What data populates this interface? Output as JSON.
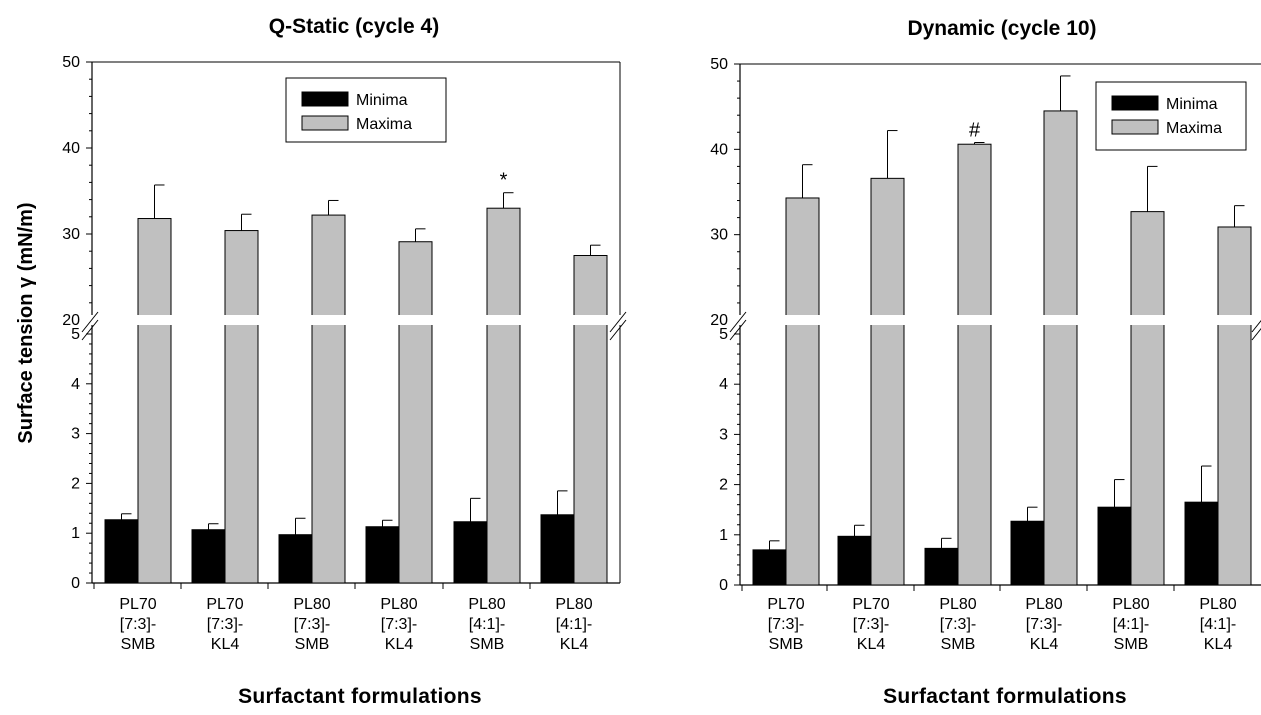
{
  "colors": {
    "minima": "#000000",
    "maxima": "#c0c0c0",
    "axis": "#000000",
    "background": "#ffffff"
  },
  "ylabel": "Surface tension γ (mN/m)",
  "chart_data": [
    {
      "type": "bar",
      "title": "Q-Static (cycle 4)",
      "xlabel": "Surfactant formulations",
      "ylabel": "Surface tension γ (mN/m)",
      "categories": [
        [
          "PL70",
          "[7:3]-",
          "SMB"
        ],
        [
          "PL70",
          "[7:3]-",
          "KL4"
        ],
        [
          "PL80",
          "[7:3]-",
          "SMB"
        ],
        [
          "PL80",
          "[7:3]-",
          "KL4"
        ],
        [
          "PL80",
          "[4:1]-",
          "SMB"
        ],
        [
          "PL80",
          "[4:1]-",
          "KL4"
        ]
      ],
      "series": [
        {
          "name": "Minima",
          "values": [
            1.27,
            1.07,
            0.97,
            1.13,
            1.23,
            1.37
          ],
          "errors": [
            0.12,
            0.12,
            0.33,
            0.13,
            0.47,
            0.48
          ]
        },
        {
          "name": "Maxima",
          "values": [
            31.8,
            30.4,
            32.2,
            29.1,
            33.0,
            27.5
          ],
          "errors": [
            3.9,
            1.9,
            1.7,
            1.5,
            1.8,
            1.2
          ]
        }
      ],
      "ylim_lower": [
        0,
        5
      ],
      "yticks_lower": [
        0,
        1,
        2,
        3,
        4,
        5
      ],
      "ylim_upper": [
        20,
        50
      ],
      "yticks_upper": [
        20,
        30,
        40,
        50
      ],
      "axis_break": true,
      "annotations": [
        {
          "category_index": 4,
          "series": "Maxima",
          "text": "*"
        }
      ],
      "legend": {
        "position": "top-center",
        "entries": [
          "Minima",
          "Maxima"
        ]
      },
      "grid": false
    },
    {
      "type": "bar",
      "title": "Dynamic (cycle 10)",
      "xlabel": "Surfactant formulations",
      "ylabel": "",
      "categories": [
        [
          "PL70",
          "[7:3]-",
          "SMB"
        ],
        [
          "PL70",
          "[7:3]-",
          "KL4"
        ],
        [
          "PL80",
          "[7:3]-",
          "SMB"
        ],
        [
          "PL80",
          "[7:3]-",
          "KL4"
        ],
        [
          "PL80",
          "[4:1]-",
          "SMB"
        ],
        [
          "PL80",
          "[4:1]-",
          "KL4"
        ]
      ],
      "series": [
        {
          "name": "Minima",
          "values": [
            0.7,
            0.97,
            0.73,
            1.27,
            1.55,
            1.65
          ],
          "errors": [
            0.18,
            0.22,
            0.2,
            0.28,
            0.55,
            0.72
          ]
        },
        {
          "name": "Maxima",
          "values": [
            34.3,
            36.6,
            40.6,
            44.5,
            32.7,
            30.9
          ],
          "errors": [
            3.9,
            5.6,
            0.2,
            4.1,
            5.3,
            2.5
          ]
        }
      ],
      "ylim_lower": [
        0,
        5
      ],
      "yticks_lower": [
        0,
        1,
        2,
        3,
        4,
        5
      ],
      "ylim_upper": [
        20,
        50
      ],
      "yticks_upper": [
        20,
        30,
        40,
        50
      ],
      "axis_break": true,
      "annotations": [
        {
          "category_index": 2,
          "series": "Maxima",
          "text": "#"
        }
      ],
      "legend": {
        "position": "top-right",
        "entries": [
          "Minima",
          "Maxima"
        ]
      },
      "grid": false
    }
  ]
}
